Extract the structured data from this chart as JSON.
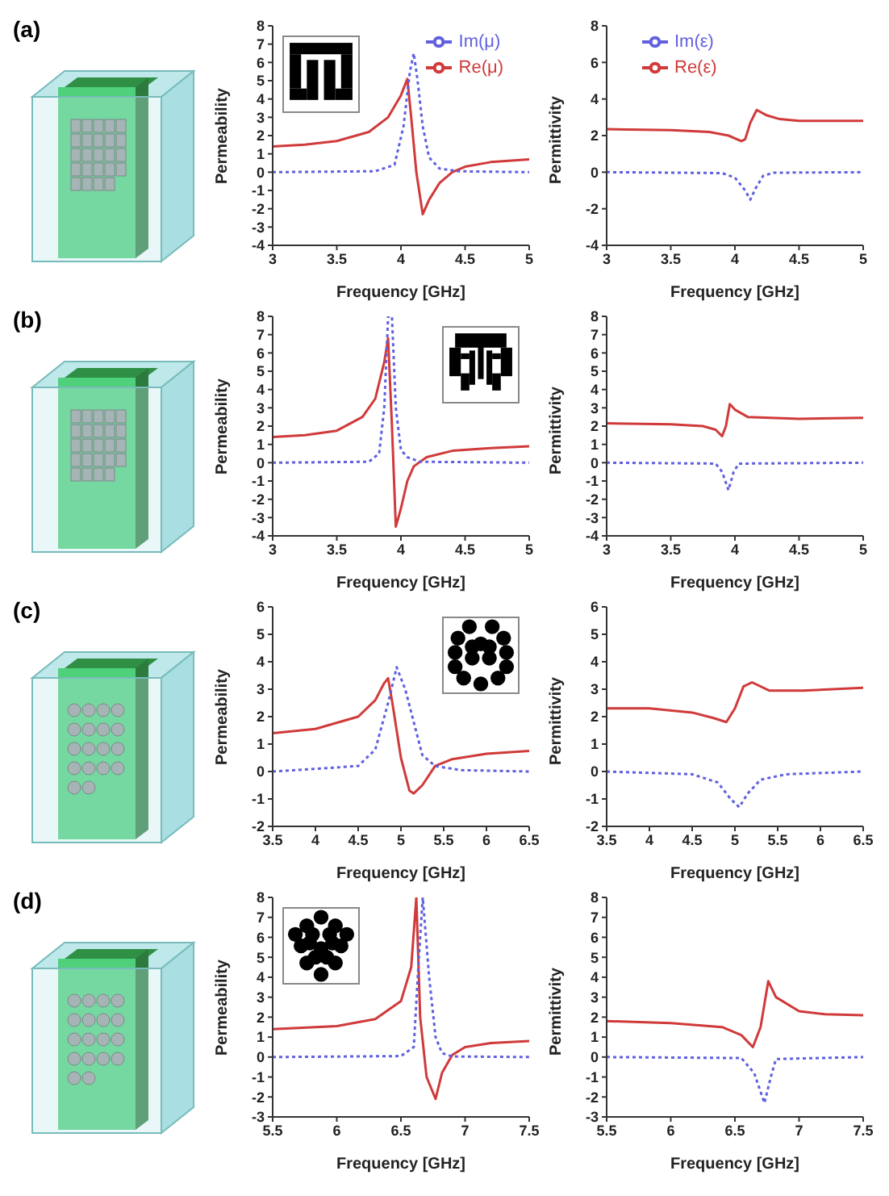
{
  "chart_data": [
    {
      "type": "line",
      "xlabel": "Frequency [GHz]",
      "ylabel": "Permeability",
      "annotations": [
        "(a)"
      ],
      "xlim": [
        3,
        5
      ],
      "xticks": [
        3,
        3.5,
        4,
        4.5,
        5
      ],
      "ylim": [
        -4,
        8
      ],
      "yticks": [
        -4,
        -3,
        -2,
        -1,
        0,
        1,
        2,
        3,
        4,
        5,
        6,
        7,
        8
      ],
      "legend": "top right",
      "grid": false,
      "series": [
        {
          "name": "Re(μ)",
          "color": "#d03a3a",
          "line_style": "solid",
          "x": [
            3,
            3.25,
            3.5,
            3.75,
            3.9,
            4.0,
            4.05,
            4.08,
            4.12,
            4.17,
            4.22,
            4.3,
            4.4,
            4.5,
            4.7,
            5
          ],
          "values": [
            1.4,
            1.5,
            1.7,
            2.2,
            3.0,
            4.2,
            5.1,
            3,
            0,
            -2.3,
            -1.5,
            -0.6,
            0,
            0.3,
            0.55,
            0.7
          ]
        },
        {
          "name": "Im(μ)",
          "color": "#6060e0",
          "line_style": "dotted",
          "x": [
            3,
            3.8,
            3.95,
            4.02,
            4.07,
            4.1,
            4.13,
            4.17,
            4.22,
            4.3,
            4.45,
            5
          ],
          "values": [
            0,
            0.05,
            0.4,
            2.5,
            5.5,
            6.5,
            5,
            2.5,
            0.8,
            0.2,
            0.05,
            0
          ]
        }
      ]
    },
    {
      "type": "line",
      "xlabel": "Frequency [GHz]",
      "ylabel": "Permittivity",
      "xlim": [
        3,
        5
      ],
      "xticks": [
        3,
        3.5,
        4,
        4.5,
        5
      ],
      "ylim": [
        -4,
        8
      ],
      "yticks": [
        -4,
        -2,
        0,
        2,
        4,
        6,
        8
      ],
      "legend": "top left",
      "grid": false,
      "series": [
        {
          "name": "Re(ε)",
          "color": "#d03a3a",
          "line_style": "solid",
          "x": [
            3,
            3.5,
            3.8,
            3.95,
            4.05,
            4.08,
            4.12,
            4.17,
            4.25,
            4.35,
            4.5,
            5
          ],
          "values": [
            2.35,
            2.3,
            2.2,
            2.0,
            1.7,
            1.8,
            2.7,
            3.4,
            3.1,
            2.9,
            2.8,
            2.8
          ]
        },
        {
          "name": "Im(ε)",
          "color": "#6060e0",
          "line_style": "dotted",
          "x": [
            3,
            3.9,
            4.0,
            4.08,
            4.12,
            4.16,
            4.22,
            4.3,
            5
          ],
          "values": [
            0,
            -0.05,
            -0.3,
            -1.0,
            -1.5,
            -0.9,
            -0.2,
            -0.03,
            0
          ]
        }
      ]
    },
    {
      "type": "line",
      "xlabel": "Frequency [GHz]",
      "ylabel": "Permeability",
      "annotations": [
        "(b)"
      ],
      "xlim": [
        3,
        5
      ],
      "xticks": [
        3,
        3.5,
        4,
        4.5,
        5
      ],
      "ylim": [
        -4,
        8
      ],
      "yticks": [
        -4,
        -3,
        -2,
        -1,
        0,
        1,
        2,
        3,
        4,
        5,
        6,
        7,
        8
      ],
      "grid": false,
      "series": [
        {
          "color": "#d03a3a",
          "line_style": "solid",
          "x": [
            3,
            3.25,
            3.5,
            3.7,
            3.8,
            3.87,
            3.9,
            3.93,
            3.96,
            4.0,
            4.05,
            4.1,
            4.2,
            4.4,
            4.7,
            5
          ],
          "values": [
            1.4,
            1.5,
            1.75,
            2.5,
            3.5,
            5.5,
            6.8,
            2,
            -3.5,
            -2.5,
            -1,
            -0.2,
            0.3,
            0.65,
            0.8,
            0.9
          ]
        },
        {
          "color": "#6060e0",
          "line_style": "dotted",
          "x": [
            3,
            3.75,
            3.83,
            3.87,
            3.9,
            3.93,
            3.96,
            4.0,
            4.05,
            4.15,
            5
          ],
          "values": [
            0,
            0.05,
            0.5,
            3,
            8,
            8,
            3,
            0.7,
            0.3,
            0.05,
            0
          ]
        }
      ]
    },
    {
      "type": "line",
      "xlabel": "Frequency [GHz]",
      "ylabel": "Permittivity",
      "xlim": [
        3,
        5
      ],
      "xticks": [
        3,
        3.5,
        4,
        4.5,
        5
      ],
      "ylim": [
        -4,
        8
      ],
      "yticks": [
        -4,
        -3,
        -2,
        -1,
        0,
        1,
        2,
        3,
        4,
        5,
        6,
        7,
        8
      ],
      "grid": false,
      "series": [
        {
          "color": "#d03a3a",
          "line_style": "solid",
          "x": [
            3,
            3.5,
            3.75,
            3.85,
            3.9,
            3.93,
            3.96,
            4.0,
            4.1,
            4.5,
            5
          ],
          "values": [
            2.15,
            2.1,
            2.0,
            1.8,
            1.45,
            2,
            3.2,
            2.9,
            2.5,
            2.4,
            2.45
          ]
        },
        {
          "color": "#6060e0",
          "line_style": "dotted",
          "x": [
            3,
            3.85,
            3.9,
            3.95,
            3.99,
            4.03,
            5
          ],
          "values": [
            0,
            -0.05,
            -0.5,
            -1.5,
            -0.5,
            -0.05,
            0
          ]
        }
      ]
    },
    {
      "type": "line",
      "xlabel": "Frequency [GHz]",
      "ylabel": "Permeability",
      "annotations": [
        "(c)"
      ],
      "xlim": [
        3.5,
        6.5
      ],
      "xticks": [
        3.5,
        4,
        4.5,
        5,
        5.5,
        6,
        6.5
      ],
      "ylim": [
        -2,
        6
      ],
      "yticks": [
        -2,
        -1,
        0,
        1,
        2,
        3,
        4,
        5,
        6
      ],
      "grid": false,
      "series": [
        {
          "color": "#d03a3a",
          "line_style": "solid",
          "x": [
            3.5,
            4,
            4.5,
            4.7,
            4.8,
            4.85,
            4.9,
            5,
            5.1,
            5.15,
            5.25,
            5.4,
            5.6,
            6,
            6.5
          ],
          "values": [
            1.4,
            1.55,
            2,
            2.6,
            3.2,
            3.4,
            2.5,
            0.5,
            -0.7,
            -0.8,
            -0.5,
            0.2,
            0.45,
            0.65,
            0.75
          ]
        },
        {
          "color": "#6060e0",
          "line_style": "dotted",
          "x": [
            3.5,
            4.5,
            4.7,
            4.85,
            4.95,
            5.05,
            5.15,
            5.25,
            5.4,
            5.7,
            6.5
          ],
          "values": [
            0,
            0.2,
            0.8,
            2.5,
            3.8,
            3,
            1.8,
            0.6,
            0.2,
            0.05,
            0
          ]
        }
      ]
    },
    {
      "type": "line",
      "xlabel": "Frequency [GHz]",
      "ylabel": "Permittivity",
      "xlim": [
        3.5,
        6.5
      ],
      "xticks": [
        3.5,
        4,
        4.5,
        5,
        5.5,
        6,
        6.5
      ],
      "ylim": [
        -2,
        6
      ],
      "yticks": [
        -2,
        -1,
        0,
        1,
        2,
        3,
        4,
        5,
        6
      ],
      "grid": false,
      "series": [
        {
          "color": "#d03a3a",
          "line_style": "solid",
          "x": [
            3.5,
            4,
            4.5,
            4.75,
            4.9,
            5.0,
            5.1,
            5.2,
            5.4,
            5.8,
            6.5
          ],
          "values": [
            2.3,
            2.3,
            2.15,
            1.95,
            1.8,
            2.3,
            3.1,
            3.25,
            2.95,
            2.95,
            3.05
          ]
        },
        {
          "color": "#6060e0",
          "line_style": "dotted",
          "x": [
            3.5,
            4.5,
            4.8,
            4.95,
            5.05,
            5.15,
            5.3,
            5.6,
            6.5
          ],
          "values": [
            0,
            -0.1,
            -0.4,
            -1,
            -1.3,
            -0.8,
            -0.3,
            -0.1,
            0
          ]
        }
      ]
    },
    {
      "type": "line",
      "xlabel": "Frequency [GHz]",
      "ylabel": "Permeability",
      "annotations": [
        "(d)"
      ],
      "xlim": [
        5.5,
        7.5
      ],
      "xticks": [
        5.5,
        6,
        6.5,
        7,
        7.5
      ],
      "ylim": [
        -3,
        8
      ],
      "yticks": [
        -3,
        -2,
        -1,
        0,
        1,
        2,
        3,
        4,
        5,
        6,
        7,
        8
      ],
      "grid": false,
      "series": [
        {
          "color": "#d03a3a",
          "line_style": "solid",
          "x": [
            5.5,
            6,
            6.3,
            6.5,
            6.58,
            6.62,
            6.65,
            6.7,
            6.77,
            6.82,
            6.9,
            7,
            7.2,
            7.5
          ],
          "values": [
            1.4,
            1.55,
            1.9,
            2.8,
            4.5,
            8,
            2,
            -1,
            -2.1,
            -0.8,
            0.1,
            0.5,
            0.7,
            0.8
          ]
        },
        {
          "color": "#6060e0",
          "line_style": "dotted",
          "x": [
            5.5,
            6.5,
            6.6,
            6.64,
            6.67,
            6.72,
            6.77,
            6.82,
            6.9,
            7.5
          ],
          "values": [
            0,
            0.05,
            0.5,
            5,
            8,
            4,
            1,
            0.2,
            0.03,
            0
          ]
        }
      ]
    },
    {
      "type": "line",
      "xlabel": "Frequency [GHz]",
      "ylabel": "Permittivity",
      "xlim": [
        5.5,
        7.5
      ],
      "xticks": [
        5.5,
        6,
        6.5,
        7,
        7.5
      ],
      "ylim": [
        -3,
        8
      ],
      "yticks": [
        -3,
        -2,
        -1,
        0,
        1,
        2,
        3,
        4,
        5,
        6,
        7,
        8
      ],
      "grid": false,
      "series": [
        {
          "color": "#d03a3a",
          "line_style": "solid",
          "x": [
            5.5,
            6,
            6.4,
            6.55,
            6.64,
            6.7,
            6.76,
            6.82,
            7,
            7.2,
            7.5
          ],
          "values": [
            1.8,
            1.7,
            1.5,
            1.1,
            0.5,
            1.5,
            3.8,
            3,
            2.3,
            2.15,
            2.1
          ]
        },
        {
          "color": "#6060e0",
          "line_style": "dotted",
          "x": [
            5.5,
            6.55,
            6.65,
            6.73,
            6.78,
            6.82,
            7.5
          ],
          "values": [
            0,
            -0.05,
            -0.8,
            -2.3,
            -1,
            -0.1,
            0
          ]
        }
      ]
    }
  ]
}
